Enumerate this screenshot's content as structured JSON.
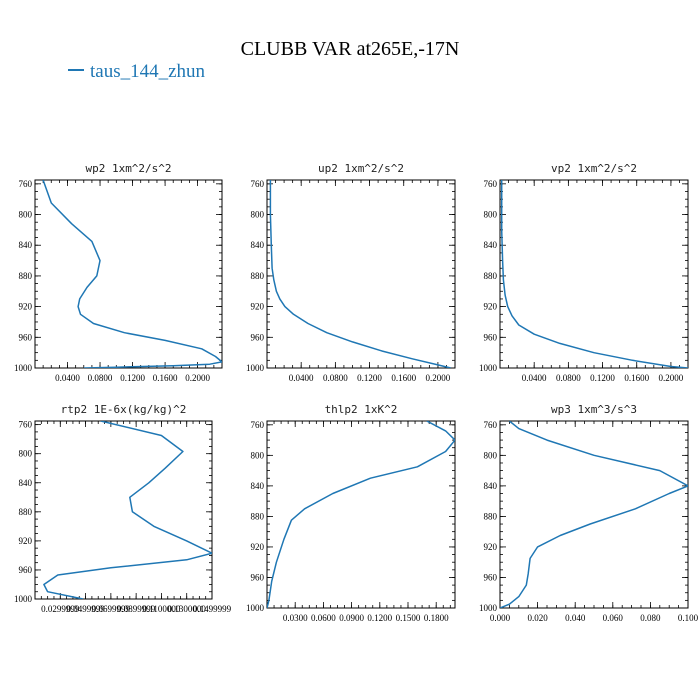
{
  "figure": {
    "title": "CLUBB VAR at265E,-17N",
    "legend": [
      {
        "label": "taus_144_zhun",
        "color": "#1f77b4"
      }
    ]
  },
  "chart_data": [
    {
      "type": "line",
      "title": "wp2 1xm^2/s^2",
      "series_name": "taus_144_zhun",
      "color": "#1f77b4",
      "xlim": [
        0,
        0.23
      ],
      "ylim": [
        1000,
        755
      ],
      "xticks": [
        0.04,
        0.08,
        0.12,
        0.16,
        0.2
      ],
      "xtick_labels": [
        "0.0400",
        "0.0800",
        "0.1200",
        "0.1600",
        "0.2000"
      ],
      "yticks": [
        760,
        800,
        840,
        880,
        920,
        960,
        1000
      ],
      "ytick_labels": [
        "760",
        "800",
        "840",
        "880",
        "920",
        "960",
        "1000"
      ],
      "points": [
        [
          0.01,
          755
        ],
        [
          0.02,
          785
        ],
        [
          0.045,
          812
        ],
        [
          0.07,
          835
        ],
        [
          0.08,
          860
        ],
        [
          0.076,
          880
        ],
        [
          0.064,
          895
        ],
        [
          0.055,
          910
        ],
        [
          0.053,
          920
        ],
        [
          0.056,
          930
        ],
        [
          0.072,
          942
        ],
        [
          0.11,
          954
        ],
        [
          0.16,
          964
        ],
        [
          0.205,
          975
        ],
        [
          0.222,
          985
        ],
        [
          0.23,
          992
        ],
        [
          0.215,
          995
        ],
        [
          0.17,
          997
        ],
        [
          0.1,
          999
        ],
        [
          0.06,
          1000
        ]
      ]
    },
    {
      "type": "line",
      "title": "up2 1xm^2/s^2",
      "series_name": "taus_144_zhun",
      "color": "#1f77b4",
      "xlim": [
        0,
        0.22
      ],
      "ylim": [
        1000,
        755
      ],
      "xticks": [
        0.04,
        0.08,
        0.12,
        0.16,
        0.2
      ],
      "xtick_labels": [
        "0.0400",
        "0.0800",
        "0.1200",
        "0.1600",
        "0.2000"
      ],
      "yticks": [
        760,
        800,
        840,
        880,
        920,
        960,
        1000
      ],
      "ytick_labels": [
        "760",
        "800",
        "840",
        "880",
        "920",
        "960",
        "1000"
      ],
      "points": [
        [
          0.004,
          755
        ],
        [
          0.004,
          800
        ],
        [
          0.005,
          840
        ],
        [
          0.006,
          870
        ],
        [
          0.008,
          885
        ],
        [
          0.011,
          900
        ],
        [
          0.015,
          910
        ],
        [
          0.021,
          920
        ],
        [
          0.031,
          930
        ],
        [
          0.048,
          942
        ],
        [
          0.07,
          954
        ],
        [
          0.1,
          966
        ],
        [
          0.135,
          978
        ],
        [
          0.17,
          988
        ],
        [
          0.2,
          996
        ],
        [
          0.215,
          1000
        ]
      ]
    },
    {
      "type": "line",
      "title": "vp2 1xm^2/s^2",
      "series_name": "taus_144_zhun",
      "color": "#1f77b4",
      "xlim": [
        0,
        0.22
      ],
      "ylim": [
        1000,
        755
      ],
      "xticks": [
        0.04,
        0.08,
        0.12,
        0.16,
        0.2
      ],
      "xtick_labels": [
        "0.0400",
        "0.0800",
        "0.1200",
        "0.1600",
        "0.2000"
      ],
      "yticks": [
        760,
        800,
        840,
        880,
        920,
        960,
        1000
      ],
      "ytick_labels": [
        "760",
        "800",
        "840",
        "880",
        "920",
        "960",
        "1000"
      ],
      "points": [
        [
          0.002,
          755
        ],
        [
          0.002,
          820
        ],
        [
          0.003,
          860
        ],
        [
          0.004,
          885
        ],
        [
          0.006,
          905
        ],
        [
          0.009,
          920
        ],
        [
          0.014,
          932
        ],
        [
          0.022,
          944
        ],
        [
          0.04,
          956
        ],
        [
          0.07,
          968
        ],
        [
          0.11,
          980
        ],
        [
          0.155,
          990
        ],
        [
          0.2,
          998
        ],
        [
          0.22,
          1000
        ]
      ]
    },
    {
      "type": "line",
      "title": "rtp2 1E-6x(kg/kg)^2",
      "series_name": "taus_144_zhun",
      "color": "#1f77b4",
      "xlim": [
        0.01,
        0.15
      ],
      "ylim": [
        1000,
        755
      ],
      "xticks": [
        0.03,
        0.05,
        0.07,
        0.09,
        0.11,
        0.13,
        0.15
      ],
      "xtick_labels": [
        "0.0299999",
        "0.0499999",
        "0.0699999",
        "0.0899999",
        "0.1100000",
        "0.1300000",
        "0.1499999"
      ],
      "yticks": [
        760,
        800,
        840,
        880,
        920,
        960,
        1000
      ],
      "ytick_labels": [
        "760",
        "800",
        "840",
        "880",
        "920",
        "960",
        "1000"
      ],
      "points": [
        [
          0.062,
          755
        ],
        [
          0.11,
          775
        ],
        [
          0.127,
          797
        ],
        [
          0.113,
          820
        ],
        [
          0.1,
          840
        ],
        [
          0.085,
          860
        ],
        [
          0.087,
          880
        ],
        [
          0.104,
          900
        ],
        [
          0.13,
          920
        ],
        [
          0.15,
          937
        ],
        [
          0.13,
          946
        ],
        [
          0.07,
          957
        ],
        [
          0.028,
          967
        ],
        [
          0.017,
          980
        ],
        [
          0.02,
          990
        ],
        [
          0.048,
          1000
        ]
      ]
    },
    {
      "type": "line",
      "title": "thlp2 1xK^2",
      "series_name": "taus_144_zhun",
      "color": "#1f77b4",
      "xlim": [
        0,
        0.2
      ],
      "ylim": [
        1000,
        755
      ],
      "xticks": [
        0.03,
        0.06,
        0.09,
        0.12,
        0.15,
        0.18
      ],
      "xtick_labels": [
        "0.0300",
        "0.0600",
        "0.0900",
        "0.1200",
        "0.1500",
        "0.1800"
      ],
      "yticks": [
        760,
        800,
        840,
        880,
        920,
        960,
        1000
      ],
      "ytick_labels": [
        "760",
        "800",
        "840",
        "880",
        "920",
        "960",
        "1000"
      ],
      "points": [
        [
          0.17,
          755
        ],
        [
          0.19,
          768
        ],
        [
          0.2,
          780
        ],
        [
          0.19,
          795
        ],
        [
          0.16,
          815
        ],
        [
          0.11,
          830
        ],
        [
          0.07,
          850
        ],
        [
          0.04,
          870
        ],
        [
          0.026,
          885
        ],
        [
          0.018,
          910
        ],
        [
          0.01,
          940
        ],
        [
          0.005,
          965
        ],
        [
          0.002,
          990
        ],
        [
          0.0,
          1000
        ]
      ]
    },
    {
      "type": "line",
      "title": "wp3 1xm^3/s^3",
      "series_name": "taus_144_zhun",
      "color": "#1f77b4",
      "xlim": [
        0,
        0.1
      ],
      "ylim": [
        1000,
        755
      ],
      "xticks": [
        0.0,
        0.02,
        0.04,
        0.06,
        0.08,
        0.1
      ],
      "xtick_labels": [
        "0.000",
        "0.020",
        "0.040",
        "0.060",
        "0.080",
        "0.100"
      ],
      "yticks": [
        760,
        800,
        840,
        880,
        920,
        960,
        1000
      ],
      "ytick_labels": [
        "760",
        "800",
        "840",
        "880",
        "920",
        "960",
        "1000"
      ],
      "points": [
        [
          0.005,
          755
        ],
        [
          0.01,
          765
        ],
        [
          0.025,
          780
        ],
        [
          0.05,
          800
        ],
        [
          0.085,
          820
        ],
        [
          0.1,
          840
        ],
        [
          0.09,
          850
        ],
        [
          0.072,
          870
        ],
        [
          0.048,
          890
        ],
        [
          0.032,
          905
        ],
        [
          0.02,
          920
        ],
        [
          0.016,
          935
        ],
        [
          0.015,
          955
        ],
        [
          0.014,
          970
        ],
        [
          0.01,
          985
        ],
        [
          0.005,
          995
        ],
        [
          0.0,
          1000
        ]
      ]
    }
  ]
}
